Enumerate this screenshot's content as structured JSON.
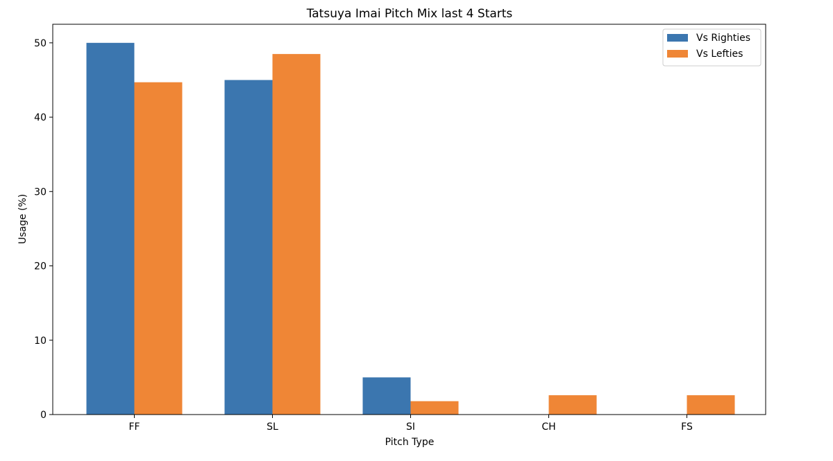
{
  "chart_data": {
    "type": "bar",
    "title": "Tatsuya Imai Pitch Mix last 4 Starts",
    "xlabel": "Pitch Type",
    "ylabel": "Usage (%)",
    "categories": [
      "FF",
      "SL",
      "SI",
      "CH",
      "FS"
    ],
    "series": [
      {
        "name": "Vs Righties",
        "color": "#3b76af",
        "values": [
          50.0,
          45.0,
          5.0,
          0,
          0
        ]
      },
      {
        "name": "Vs Lefties",
        "color": "#ef8636",
        "values": [
          44.7,
          48.5,
          1.8,
          2.6,
          2.6
        ]
      }
    ],
    "ylim": [
      0,
      52.5
    ],
    "yticks": [
      0,
      10,
      20,
      30,
      40,
      50
    ],
    "grid": false,
    "legend_position": "top-right"
  }
}
